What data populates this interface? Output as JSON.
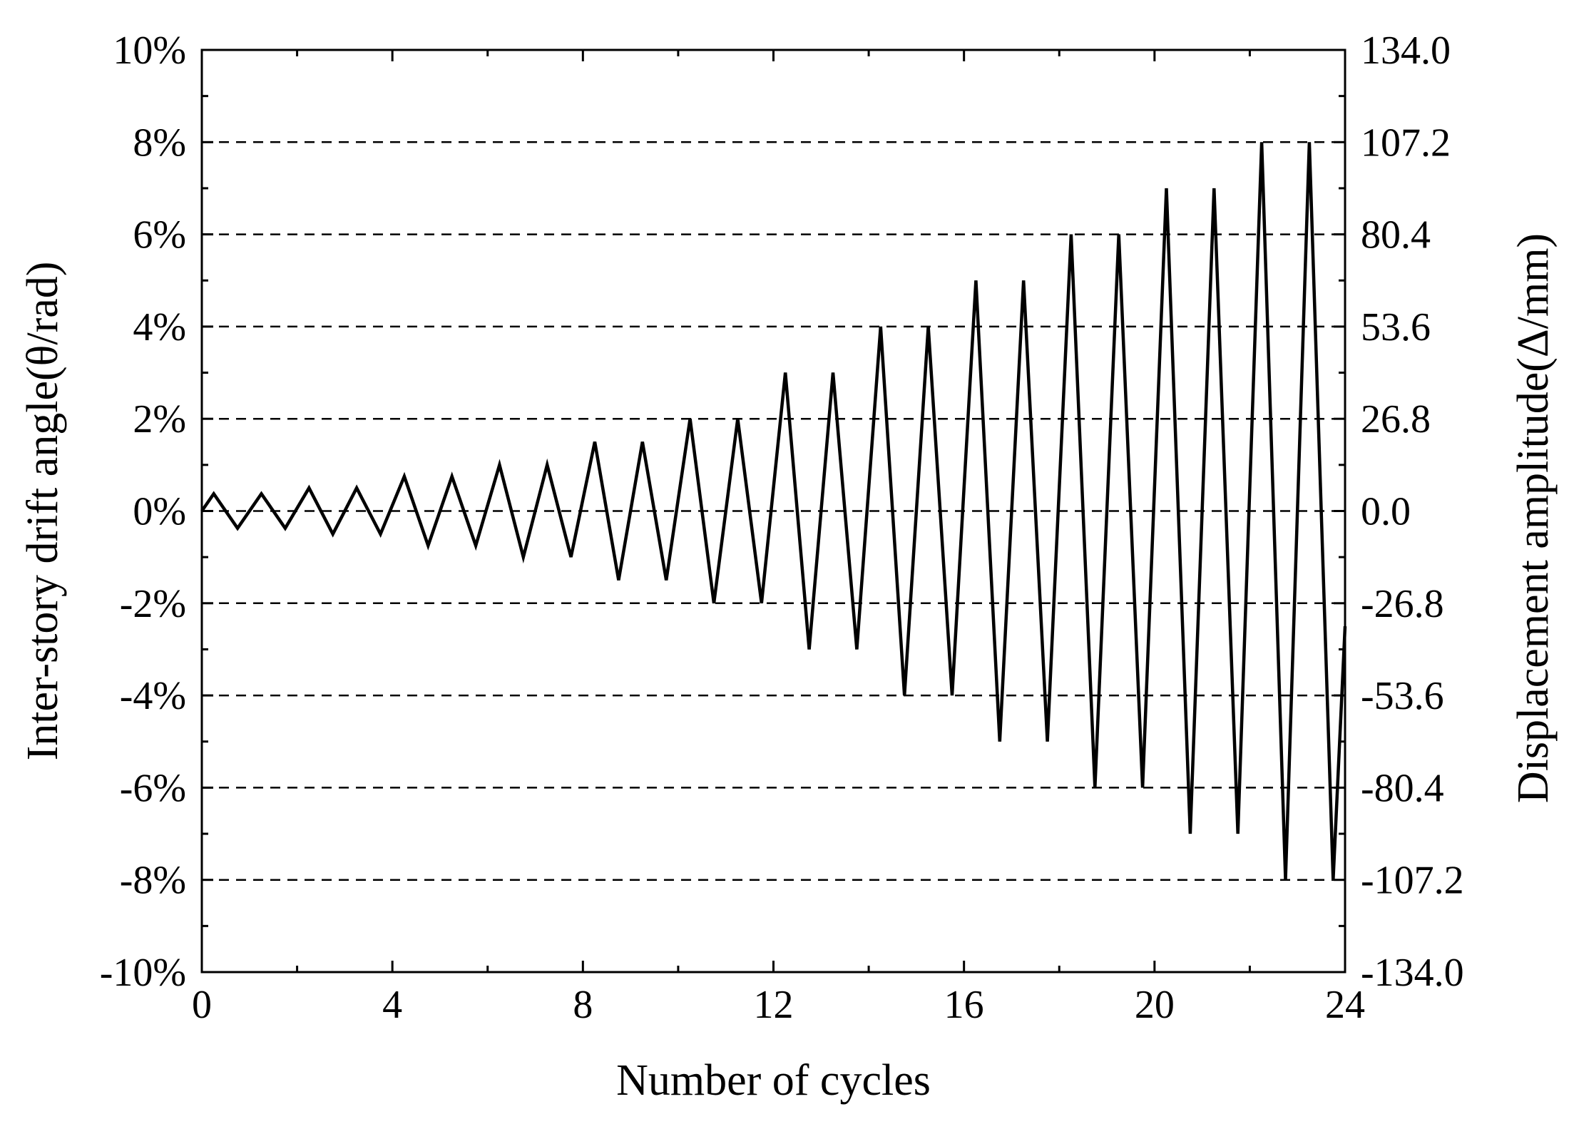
{
  "chart_data": {
    "type": "line",
    "title": "",
    "xlabel": "Number of cycles",
    "ylabel_left": "Inter-story drift angle(θ/rad)",
    "ylabel_right": "Displacement amplitude(Δ/mm)",
    "xlim": [
      0,
      24
    ],
    "ylim": [
      -10,
      10
    ],
    "x_ticks": [
      "0",
      "4",
      "8",
      "12",
      "16",
      "20",
      "24"
    ],
    "y_ticks_left": [
      "-10%",
      "-8%",
      "-6%",
      "-4%",
      "-2%",
      "0%",
      "2%",
      "4%",
      "6%",
      "8%",
      "10%"
    ],
    "y_ticks_right": [
      "-134.0",
      "-107.2",
      "-80.4",
      "-53.6",
      "-26.8",
      "0.0",
      "26.8",
      "53.6",
      "80.4",
      "107.2",
      "134.0"
    ],
    "grid": "dashed horizontal lines at ±2%, ±4%, ±6%, ±8%",
    "line_color": "#000000",
    "series": [
      {
        "x": [
          0,
          0.25,
          0.75,
          1.25,
          1.75,
          2.25,
          2.75,
          3.25,
          3.75,
          4.25,
          4.75,
          5.25,
          5.75,
          6.25,
          6.75,
          7.25,
          7.75,
          8.25,
          8.75,
          9.25,
          9.75,
          10.25,
          10.75,
          11.25,
          11.75,
          12.25,
          12.75,
          13.25,
          13.75,
          14.25,
          14.75,
          15.25,
          15.75,
          16.25,
          16.75,
          17.25,
          17.75,
          18.25,
          18.75,
          19.25,
          19.75,
          20.25,
          20.75,
          21.25,
          21.75,
          22.25,
          22.75,
          23.25,
          23.75,
          24
        ],
        "values": [
          0,
          0.375,
          -0.375,
          0.375,
          -0.375,
          0.5,
          -0.5,
          0.5,
          -0.5,
          0.75,
          -0.75,
          0.75,
          -0.75,
          1,
          -1,
          1,
          -1,
          1.5,
          -1.5,
          1.5,
          -1.5,
          2,
          -2,
          2,
          -2,
          3,
          -3,
          3,
          -3,
          4,
          -4,
          4,
          -4,
          5,
          -5,
          5,
          -5,
          6,
          -6,
          6,
          -6,
          7,
          -7,
          7,
          -7,
          8,
          -8,
          8,
          -8,
          -2.5
        ]
      }
    ]
  }
}
